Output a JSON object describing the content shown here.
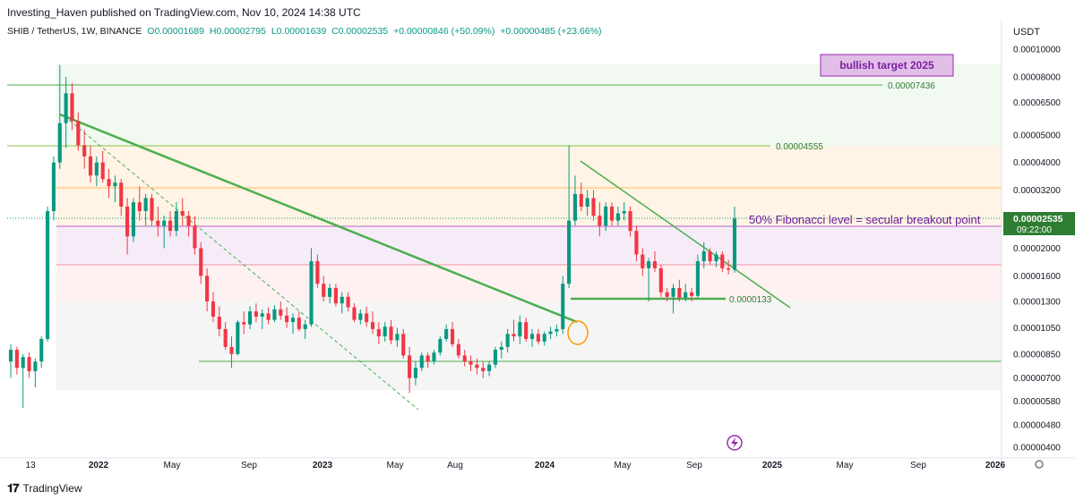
{
  "header": {
    "publisher": "Investing_Haven published on TradingView.com, Nov 10, 2024 14:38 UTC",
    "symbol": "SHIB / TetherUS, 1W, BINANCE",
    "o": "O0.00001689",
    "h": "H0.00002795",
    "l": "L0.00001639",
    "c": "C0.00002535",
    "change": "+0.00000846 (+50.09%)",
    "change2": "+0.00000485 (+23.66%)"
  },
  "price_scale": {
    "unit": "USDT",
    "current_price": "0.00002535",
    "countdown": "09:22:00"
  },
  "footer": {
    "brand": "TradingView"
  },
  "colors": {
    "up": "#089981",
    "down": "#f23645",
    "trend": "#4caf50",
    "annotation_purple": "#7b1fa2",
    "current_price_bg": "#2e7d32"
  },
  "chart_data": {
    "type": "candlestick",
    "symbol": "SHIB / TetherUS",
    "interval": "1W",
    "y_scale": "log",
    "x_tick_labels": [
      "13",
      "2022",
      "May",
      "Sep",
      "2023",
      "May",
      "Aug",
      "2024",
      "May",
      "Sep",
      "2025",
      "May",
      "Sep",
      "2026"
    ],
    "y_tick_labels": [
      "0.00010000",
      "0.00008000",
      "0.00006500",
      "0.00005000",
      "0.00004000",
      "0.00003200",
      "0.00002600",
      "0.00002000",
      "0.00001600",
      "0.00001300",
      "0.00001050",
      "0.00000850",
      "0.00000700",
      "0.00000580",
      "0.00000480",
      "0.00000400"
    ],
    "annotations": [
      {
        "text": "bullish target 2025"
      },
      {
        "text": "0.00007436"
      },
      {
        "text": "0.00004555"
      },
      {
        "text": "50% Fibonacci level = secular breakout point"
      },
      {
        "text": "0.0000133"
      }
    ],
    "levels": [
      7.436e-05,
      4.555e-05,
      3.22e-05,
      2.5e-05,
      1.78e-05,
      1.33e-05,
      8.2e-06
    ],
    "candles": [
      {
        "t": 0,
        "o": 8e-06,
        "h": 9.2e-06,
        "l": 7e-06,
        "c": 8.8e-06
      },
      {
        "t": 1,
        "o": 8.8e-06,
        "h": 9e-06,
        "l": 7.2e-06,
        "c": 7.6e-06
      },
      {
        "t": 2,
        "o": 7.6e-06,
        "h": 8.5e-06,
        "l": 5.5e-06,
        "c": 8.3e-06
      },
      {
        "t": 3,
        "o": 8.3e-06,
        "h": 8.6e-06,
        "l": 7e-06,
        "c": 7.4e-06
      },
      {
        "t": 4,
        "o": 7.4e-06,
        "h": 8.2e-06,
        "l": 6.5e-06,
        "c": 8e-06
      },
      {
        "t": 5,
        "o": 8e-06,
        "h": 9.8e-06,
        "l": 7.6e-06,
        "c": 9.6e-06
      },
      {
        "t": 6,
        "o": 9.6e-06,
        "h": 2.8e-05,
        "l": 9.4e-06,
        "c": 2.7e-05
      },
      {
        "t": 7,
        "o": 2.7e-05,
        "h": 4.2e-05,
        "l": 2.5e-05,
        "c": 4e-05
      },
      {
        "t": 8,
        "o": 4e-05,
        "h": 8.8e-05,
        "l": 3.8e-05,
        "c": 5.5e-05
      },
      {
        "t": 9,
        "o": 5.5e-05,
        "h": 8e-05,
        "l": 4.5e-05,
        "c": 7e-05
      },
      {
        "t": 10,
        "o": 7e-05,
        "h": 7.6e-05,
        "l": 5.2e-05,
        "c": 5.6e-05
      },
      {
        "t": 11,
        "o": 5.6e-05,
        "h": 6e-05,
        "l": 4.4e-05,
        "c": 4.6e-05
      },
      {
        "t": 12,
        "o": 4.6e-05,
        "h": 5.2e-05,
        "l": 3.8e-05,
        "c": 4.2e-05
      },
      {
        "t": 13,
        "o": 4.2e-05,
        "h": 4.6e-05,
        "l": 3.4e-05,
        "c": 3.6e-05
      },
      {
        "t": 14,
        "o": 3.6e-05,
        "h": 4.2e-05,
        "l": 3.3e-05,
        "c": 4e-05
      },
      {
        "t": 15,
        "o": 4e-05,
        "h": 4.4e-05,
        "l": 3.4e-05,
        "c": 3.5e-05
      },
      {
        "t": 16,
        "o": 3.5e-05,
        "h": 3.8e-05,
        "l": 3e-05,
        "c": 3.3e-05
      },
      {
        "t": 17,
        "o": 3.3e-05,
        "h": 3.6e-05,
        "l": 2.9e-05,
        "c": 3.4e-05
      },
      {
        "t": 18,
        "o": 3.4e-05,
        "h": 3.5e-05,
        "l": 2.6e-05,
        "c": 2.8e-05
      },
      {
        "t": 19,
        "o": 2.8e-05,
        "h": 3e-05,
        "l": 1.9e-05,
        "c": 2.2e-05
      },
      {
        "t": 20,
        "o": 2.2e-05,
        "h": 3e-05,
        "l": 2.1e-05,
        "c": 2.9e-05
      },
      {
        "t": 21,
        "o": 2.9e-05,
        "h": 3.3e-05,
        "l": 2.5e-05,
        "c": 2.7e-05
      },
      {
        "t": 22,
        "o": 2.7e-05,
        "h": 3.1e-05,
        "l": 2.4e-05,
        "c": 3e-05
      },
      {
        "t": 23,
        "o": 3e-05,
        "h": 3.1e-05,
        "l": 2.4e-05,
        "c": 2.5e-05
      },
      {
        "t": 24,
        "o": 2.5e-05,
        "h": 2.8e-05,
        "l": 2.2e-05,
        "c": 2.4e-05
      },
      {
        "t": 25,
        "o": 2.4e-05,
        "h": 2.6e-05,
        "l": 2e-05,
        "c": 2.5e-05
      },
      {
        "t": 26,
        "o": 2.5e-05,
        "h": 2.7e-05,
        "l": 2.2e-05,
        "c": 2.3e-05
      },
      {
        "t": 27,
        "o": 2.3e-05,
        "h": 2.9e-05,
        "l": 2.2e-05,
        "c": 2.7e-05
      },
      {
        "t": 28,
        "o": 2.7e-05,
        "h": 3e-05,
        "l": 2.4e-05,
        "c": 2.6e-05
      },
      {
        "t": 29,
        "o": 2.6e-05,
        "h": 2.7e-05,
        "l": 2.2e-05,
        "c": 2.4e-05
      },
      {
        "t": 30,
        "o": 2.4e-05,
        "h": 2.6e-05,
        "l": 1.9e-05,
        "c": 2e-05
      },
      {
        "t": 31,
        "o": 2e-05,
        "h": 2.1e-05,
        "l": 1.5e-05,
        "c": 1.6e-05
      },
      {
        "t": 32,
        "o": 1.6e-05,
        "h": 1.7e-05,
        "l": 1.2e-05,
        "c": 1.3e-05
      },
      {
        "t": 33,
        "o": 1.3e-05,
        "h": 1.4e-05,
        "l": 1.1e-05,
        "c": 1.15e-05
      },
      {
        "t": 34,
        "o": 1.15e-05,
        "h": 1.25e-05,
        "l": 9.8e-06,
        "c": 1.04e-05
      },
      {
        "t": 35,
        "o": 1.04e-05,
        "h": 1.1e-05,
        "l": 8.8e-06,
        "c": 9e-06
      },
      {
        "t": 36,
        "o": 9e-06,
        "h": 9.8e-06,
        "l": 7.6e-06,
        "c": 8.5e-06
      },
      {
        "t": 37,
        "o": 8.5e-06,
        "h": 1.12e-05,
        "l": 8.4e-06,
        "c": 1.1e-05
      },
      {
        "t": 38,
        "o": 1.1e-05,
        "h": 1.2e-05,
        "l": 1e-05,
        "c": 1.08e-05
      },
      {
        "t": 39,
        "o": 1.08e-05,
        "h": 1.25e-05,
        "l": 1.04e-05,
        "c": 1.2e-05
      },
      {
        "t": 40,
        "o": 1.2e-05,
        "h": 1.28e-05,
        "l": 1.1e-05,
        "c": 1.15e-05
      },
      {
        "t": 41,
        "o": 1.15e-05,
        "h": 1.22e-05,
        "l": 1.04e-05,
        "c": 1.18e-05
      },
      {
        "t": 42,
        "o": 1.18e-05,
        "h": 1.24e-05,
        "l": 1.08e-05,
        "c": 1.12e-05
      },
      {
        "t": 43,
        "o": 1.12e-05,
        "h": 1.26e-05,
        "l": 1.1e-05,
        "c": 1.22e-05
      },
      {
        "t": 44,
        "o": 1.22e-05,
        "h": 1.3e-05,
        "l": 1.12e-05,
        "c": 1.16e-05
      },
      {
        "t": 45,
        "o": 1.16e-05,
        "h": 1.24e-05,
        "l": 1.05e-05,
        "c": 1.1e-05
      },
      {
        "t": 46,
        "o": 1.1e-05,
        "h": 1.18e-05,
        "l": 1e-05,
        "c": 1.14e-05
      },
      {
        "t": 47,
        "o": 1.14e-05,
        "h": 1.2e-05,
        "l": 1.02e-05,
        "c": 1.04e-05
      },
      {
        "t": 48,
        "o": 1.04e-05,
        "h": 1.12e-05,
        "l": 9.6e-06,
        "c": 1.08e-05
      },
      {
        "t": 49,
        "o": 1.08e-05,
        "h": 2e-05,
        "l": 1.06e-05,
        "c": 1.8e-05
      },
      {
        "t": 50,
        "o": 1.8e-05,
        "h": 1.9e-05,
        "l": 1.45e-05,
        "c": 1.5e-05
      },
      {
        "t": 51,
        "o": 1.5e-05,
        "h": 1.6e-05,
        "l": 1.3e-05,
        "c": 1.35e-05
      },
      {
        "t": 52,
        "o": 1.35e-05,
        "h": 1.5e-05,
        "l": 1.28e-05,
        "c": 1.45e-05
      },
      {
        "t": 53,
        "o": 1.45e-05,
        "h": 1.5e-05,
        "l": 1.25e-05,
        "c": 1.28e-05
      },
      {
        "t": 54,
        "o": 1.28e-05,
        "h": 1.4e-05,
        "l": 1.18e-05,
        "c": 1.35e-05
      },
      {
        "t": 55,
        "o": 1.35e-05,
        "h": 1.4e-05,
        "l": 1.2e-05,
        "c": 1.24e-05
      },
      {
        "t": 56,
        "o": 1.24e-05,
        "h": 1.28e-05,
        "l": 1.1e-05,
        "c": 1.12e-05
      },
      {
        "t": 57,
        "o": 1.12e-05,
        "h": 1.22e-05,
        "l": 1.08e-05,
        "c": 1.18e-05
      },
      {
        "t": 58,
        "o": 1.18e-05,
        "h": 1.25e-05,
        "l": 1.06e-05,
        "c": 1.1e-05
      },
      {
        "t": 59,
        "o": 1.1e-05,
        "h": 1.2e-05,
        "l": 1e-05,
        "c": 1.04e-05
      },
      {
        "t": 60,
        "o": 1.04e-05,
        "h": 1.1e-05,
        "l": 9.2e-06,
        "c": 9.8e-06
      },
      {
        "t": 61,
        "o": 9.8e-06,
        "h": 1.1e-05,
        "l": 9.4e-06,
        "c": 1.06e-05
      },
      {
        "t": 62,
        "o": 1.06e-05,
        "h": 1.12e-05,
        "l": 9.2e-06,
        "c": 9.5e-06
      },
      {
        "t": 63,
        "o": 9.5e-06,
        "h": 1.05e-05,
        "l": 9e-06,
        "c": 1e-05
      },
      {
        "t": 64,
        "o": 1e-05,
        "h": 1.04e-05,
        "l": 8.2e-06,
        "c": 8.4e-06
      },
      {
        "t": 65,
        "o": 8.4e-06,
        "h": 9e-06,
        "l": 6.2e-06,
        "c": 7e-06
      },
      {
        "t": 66,
        "o": 7e-06,
        "h": 8e-06,
        "l": 6.6e-06,
        "c": 7.6e-06
      },
      {
        "t": 67,
        "o": 7.6e-06,
        "h": 8.6e-06,
        "l": 7.4e-06,
        "c": 8.4e-06
      },
      {
        "t": 68,
        "o": 8.4e-06,
        "h": 8.6e-06,
        "l": 7.6e-06,
        "c": 8e-06
      },
      {
        "t": 69,
        "o": 8e-06,
        "h": 8.8e-06,
        "l": 7.8e-06,
        "c": 8.6e-06
      },
      {
        "t": 70,
        "o": 8.6e-06,
        "h": 9.8e-06,
        "l": 8.4e-06,
        "c": 9.6e-06
      },
      {
        "t": 71,
        "o": 9.6e-06,
        "h": 1.08e-05,
        "l": 9.4e-06,
        "c": 1.04e-05
      },
      {
        "t": 72,
        "o": 1.04e-05,
        "h": 1.1e-05,
        "l": 9e-06,
        "c": 9.2e-06
      },
      {
        "t": 73,
        "o": 9.2e-06,
        "h": 9.6e-06,
        "l": 8.2e-06,
        "c": 8.4e-06
      },
      {
        "t": 74,
        "o": 8.4e-06,
        "h": 8.8e-06,
        "l": 7.7e-06,
        "c": 8e-06
      },
      {
        "t": 75,
        "o": 8e-06,
        "h": 8.4e-06,
        "l": 7.4e-06,
        "c": 7.8e-06
      },
      {
        "t": 76,
        "o": 7.8e-06,
        "h": 8.2e-06,
        "l": 7.2e-06,
        "c": 7.6e-06
      },
      {
        "t": 77,
        "o": 7.6e-06,
        "h": 8e-06,
        "l": 7e-06,
        "c": 7.4e-06
      },
      {
        "t": 78,
        "o": 7.4e-06,
        "h": 8e-06,
        "l": 7.1e-06,
        "c": 7.8e-06
      },
      {
        "t": 79,
        "o": 7.8e-06,
        "h": 9e-06,
        "l": 7.6e-06,
        "c": 8.8e-06
      },
      {
        "t": 80,
        "o": 8.8e-06,
        "h": 9.4e-06,
        "l": 8.2e-06,
        "c": 9e-06
      },
      {
        "t": 81,
        "o": 9e-06,
        "h": 1.04e-05,
        "l": 8.6e-06,
        "c": 1e-05
      },
      {
        "t": 82,
        "o": 1e-05,
        "h": 1.12e-05,
        "l": 9.4e-06,
        "c": 9.8e-06
      },
      {
        "t": 83,
        "o": 9.8e-06,
        "h": 1.16e-05,
        "l": 9.2e-06,
        "c": 1.1e-05
      },
      {
        "t": 84,
        "o": 1.1e-05,
        "h": 1.14e-05,
        "l": 9.4e-06,
        "c": 9.6e-06
      },
      {
        "t": 85,
        "o": 9.6e-06,
        "h": 1.04e-05,
        "l": 9e-06,
        "c": 1e-05
      },
      {
        "t": 86,
        "o": 1e-05,
        "h": 1.04e-05,
        "l": 9.2e-06,
        "c": 9.4e-06
      },
      {
        "t": 87,
        "o": 9.4e-06,
        "h": 1.02e-05,
        "l": 9.1e-06,
        "c": 1e-05
      },
      {
        "t": 88,
        "o": 1e-05,
        "h": 1.06e-05,
        "l": 9.6e-06,
        "c": 1.02e-05
      },
      {
        "t": 89,
        "o": 1.02e-05,
        "h": 1.08e-05,
        "l": 9.8e-06,
        "c": 1.04e-05
      },
      {
        "t": 90,
        "o": 1.04e-05,
        "h": 1.6e-05,
        "l": 1e-05,
        "c": 1.5e-05
      },
      {
        "t": 91,
        "o": 1.5e-05,
        "h": 4.6e-05,
        "l": 1.45e-05,
        "c": 2.5e-05
      },
      {
        "t": 92,
        "o": 2.5e-05,
        "h": 3.6e-05,
        "l": 2.4e-05,
        "c": 3.1e-05
      },
      {
        "t": 93,
        "o": 3.1e-05,
        "h": 3.4e-05,
        "l": 2.7e-05,
        "c": 2.8e-05
      },
      {
        "t": 94,
        "o": 2.8e-05,
        "h": 3.2e-05,
        "l": 2.6e-05,
        "c": 3e-05
      },
      {
        "t": 95,
        "o": 3e-05,
        "h": 3.2e-05,
        "l": 2.5e-05,
        "c": 2.6e-05
      },
      {
        "t": 96,
        "o": 2.6e-05,
        "h": 2.9e-05,
        "l": 2.2e-05,
        "c": 2.4e-05
      },
      {
        "t": 97,
        "o": 2.4e-05,
        "h": 2.9e-05,
        "l": 2.3e-05,
        "c": 2.8e-05
      },
      {
        "t": 98,
        "o": 2.8e-05,
        "h": 2.9e-05,
        "l": 2.4e-05,
        "c": 2.5e-05
      },
      {
        "t": 99,
        "o": 2.5e-05,
        "h": 2.8e-05,
        "l": 2.4e-05,
        "c": 2.65e-05
      },
      {
        "t": 100,
        "o": 2.65e-05,
        "h": 2.9e-05,
        "l": 2.5e-05,
        "c": 2.7e-05
      },
      {
        "t": 101,
        "o": 2.7e-05,
        "h": 2.8e-05,
        "l": 2.2e-05,
        "c": 2.3e-05
      },
      {
        "t": 102,
        "o": 2.3e-05,
        "h": 2.4e-05,
        "l": 1.8e-05,
        "c": 1.9e-05
      },
      {
        "t": 103,
        "o": 1.9e-05,
        "h": 2e-05,
        "l": 1.6e-05,
        "c": 1.7e-05
      },
      {
        "t": 104,
        "o": 1.7e-05,
        "h": 1.85e-05,
        "l": 1.3e-05,
        "c": 1.8e-05
      },
      {
        "t": 105,
        "o": 1.8e-05,
        "h": 1.95e-05,
        "l": 1.65e-05,
        "c": 1.7e-05
      },
      {
        "t": 106,
        "o": 1.7e-05,
        "h": 1.75e-05,
        "l": 1.35e-05,
        "c": 1.4e-05
      },
      {
        "t": 107,
        "o": 1.4e-05,
        "h": 1.45e-05,
        "l": 1.3e-05,
        "c": 1.35e-05
      },
      {
        "t": 108,
        "o": 1.35e-05,
        "h": 1.5e-05,
        "l": 1.18e-05,
        "c": 1.45e-05
      },
      {
        "t": 109,
        "o": 1.45e-05,
        "h": 1.55e-05,
        "l": 1.3e-05,
        "c": 1.34e-05
      },
      {
        "t": 110,
        "o": 1.34e-05,
        "h": 1.5e-05,
        "l": 1.3e-05,
        "c": 1.4e-05
      },
      {
        "t": 111,
        "o": 1.4e-05,
        "h": 1.45e-05,
        "l": 1.3e-05,
        "c": 1.36e-05
      },
      {
        "t": 112,
        "o": 1.36e-05,
        "h": 1.9e-05,
        "l": 1.34e-05,
        "c": 1.8e-05
      },
      {
        "t": 113,
        "o": 1.8e-05,
        "h": 2.1e-05,
        "l": 1.7e-05,
        "c": 1.95e-05
      },
      {
        "t": 114,
        "o": 1.95e-05,
        "h": 2e-05,
        "l": 1.75e-05,
        "c": 1.8e-05
      },
      {
        "t": 115,
        "o": 1.8e-05,
        "h": 1.95e-05,
        "l": 1.72e-05,
        "c": 1.9e-05
      },
      {
        "t": 116,
        "o": 1.9e-05,
        "h": 1.95e-05,
        "l": 1.65e-05,
        "c": 1.7e-05
      },
      {
        "t": 117,
        "o": 1.7e-05,
        "h": 1.82e-05,
        "l": 1.62e-05,
        "c": 1.68e-05
      },
      {
        "t": 118,
        "o": 1.68e-05,
        "h": 2.8e-05,
        "l": 1.64e-05,
        "c": 2.54e-05
      }
    ]
  }
}
